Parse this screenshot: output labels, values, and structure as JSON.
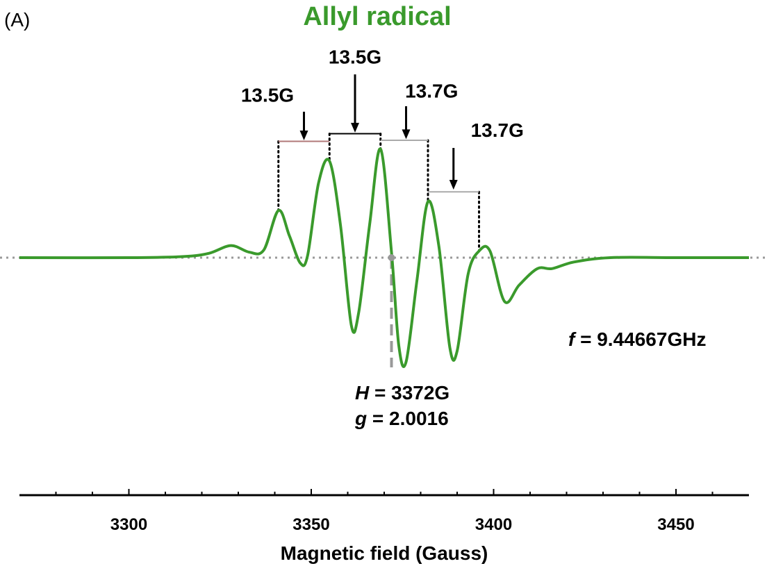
{
  "chart_data": {
    "type": "line",
    "panel_label": "(A)",
    "title": "Allyl radical",
    "xlabel": "Magnetic field (Gauss)",
    "ylabel": "",
    "xlim": [
      3270,
      3470
    ],
    "ylim": [
      -1.05,
      1.05
    ],
    "xticks": [
      3300,
      3350,
      3400,
      3450
    ],
    "grid": false,
    "baseline": 0,
    "series": [
      {
        "color": "#3a9a2c",
        "x": [
          3270,
          3300,
          3315,
          3322,
          3328,
          3333,
          3337,
          3341,
          3344,
          3347,
          3349,
          3352,
          3355,
          3358,
          3361,
          3363,
          3366,
          3369,
          3372,
          3374,
          3376,
          3379,
          3382,
          3385,
          3388,
          3390,
          3393,
          3396,
          3399,
          3403,
          3407,
          3412,
          3416,
          3422,
          3432,
          3450,
          3470
        ],
        "y": [
          0,
          0,
          0.01,
          0.04,
          0.11,
          0.05,
          0.07,
          0.43,
          0.2,
          -0.05,
          0.02,
          0.68,
          0.88,
          0.3,
          -0.62,
          -0.5,
          0.3,
          0.99,
          0.05,
          -0.8,
          -0.95,
          -0.2,
          0.51,
          0.1,
          -0.82,
          -0.85,
          -0.15,
          0.06,
          0.06,
          -0.4,
          -0.25,
          -0.1,
          -0.1,
          -0.04,
          0,
          0,
          0
        ]
      }
    ],
    "peaks": [
      {
        "x": 3341,
        "y": 0.43
      },
      {
        "x": 3355,
        "y": 0.88
      },
      {
        "x": 3369,
        "y": 0.99
      },
      {
        "x": 3382,
        "y": 0.51
      },
      {
        "x": 3396,
        "y": 0.06
      }
    ],
    "spacings": [
      {
        "label": "13.5G",
        "from": 3341,
        "to": 3355,
        "bar_y": 1.06,
        "color": "#b07878",
        "label_x": 3338,
        "label_y": 1.42,
        "arrow_x": 3348,
        "arrow_from_y": 1.33,
        "arrow_to_y": 1.07
      },
      {
        "label": "13.5G",
        "from": 3355,
        "to": 3369,
        "bar_y": 1.13,
        "color": "#000000",
        "label_x": 3362,
        "label_y": 1.77,
        "arrow_x": 3362,
        "arrow_from_y": 1.67,
        "arrow_to_y": 1.14
      },
      {
        "label": "13.7G",
        "from": 3369,
        "to": 3382,
        "bar_y": 1.07,
        "color": "#aaaaaa",
        "label_x": 3383,
        "label_y": 1.46,
        "arrow_x": 3376,
        "arrow_from_y": 1.38,
        "arrow_to_y": 1.08
      },
      {
        "label": "13.7G",
        "from": 3382,
        "to": 3396,
        "bar_y": 0.6,
        "color": "#aaaaaa",
        "label_x": 3401,
        "label_y": 1.1,
        "arrow_x": 3389,
        "arrow_from_y": 1.0,
        "arrow_to_y": 0.62
      }
    ],
    "center_marker": {
      "x": 3372,
      "y_bottom": -1.0
    },
    "annotations": {
      "h_prefix": "H",
      "h_value": " = 3372G",
      "g_prefix": "g",
      "g_value": " = 2.0016",
      "f_prefix": "f",
      "f_value": " = 9.44667GHz"
    }
  }
}
